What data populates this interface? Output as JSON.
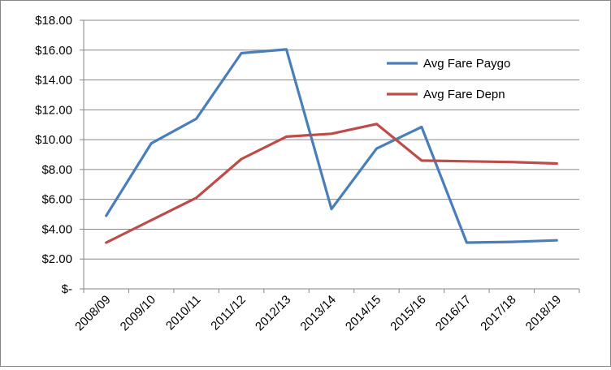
{
  "chart_data": {
    "type": "line",
    "categories": [
      "2008/09",
      "2009/10",
      "2010/11",
      "2011/12",
      "2012/13",
      "2013/14",
      "2014/15",
      "2015/16",
      "2016/17",
      "2017/18",
      "2018/19"
    ],
    "ylim": [
      0,
      18
    ],
    "yticks": [
      0,
      2,
      4,
      6,
      8,
      10,
      12,
      14,
      16,
      18
    ],
    "ytick_labels": [
      "$-",
      "$2.00",
      "$4.00",
      "$6.00",
      "$8.00",
      "$10.00",
      "$12.00",
      "$14.00",
      "$16.00",
      "$18.00"
    ],
    "grid": true,
    "legend_position": "top-right",
    "series": [
      {
        "name": "Avg Fare Paygo",
        "color": "#4A7EBB",
        "values": [
          4.9,
          9.75,
          11.4,
          15.8,
          16.05,
          5.35,
          9.4,
          10.85,
          3.1,
          3.15,
          3.25
        ]
      },
      {
        "name": "Avg Fare Depn",
        "color": "#BE4B48",
        "values": [
          3.1,
          null,
          6.1,
          8.7,
          10.2,
          10.4,
          11.05,
          8.6,
          8.55,
          8.5,
          8.4
        ]
      }
    ]
  }
}
